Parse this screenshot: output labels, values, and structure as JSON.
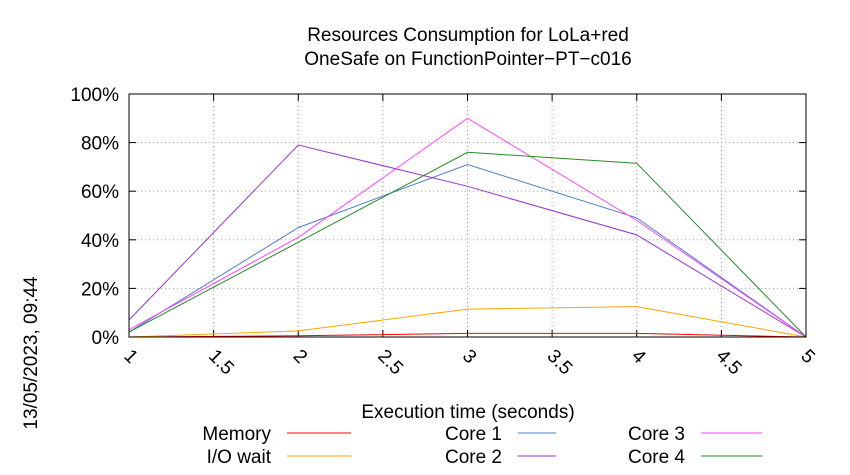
{
  "chart_data": {
    "type": "line",
    "title": "Resources Consumption for LoLa+red",
    "subtitle": "OneSafe on FunctionPointer−PT−c016",
    "xlabel": "Execution time (seconds)",
    "ylabel": "",
    "timestamp": "13/05/2023, 09:44",
    "xlim": [
      1,
      5
    ],
    "ylim": [
      0,
      100
    ],
    "x_ticks": [
      "1",
      "1.5",
      "2",
      "2.5",
      "3",
      "3.5",
      "4",
      "4.5",
      "5"
    ],
    "y_ticks": [
      "0%",
      "20%",
      "40%",
      "60%",
      "80%",
      "100%"
    ],
    "grid": true,
    "legend_position": "bottom",
    "x": [
      1,
      2,
      3,
      4,
      5
    ],
    "series": [
      {
        "name": "Memory",
        "color": "#ff0000",
        "values": [
          0,
          0.5,
          1.5,
          1.5,
          0
        ]
      },
      {
        "name": "I/O wait",
        "color": "#ffa500",
        "values": [
          0,
          2.5,
          11.5,
          12.5,
          0
        ]
      },
      {
        "name": "Core 1",
        "color": "#4a7cc8",
        "values": [
          2,
          45,
          71,
          49,
          0
        ]
      },
      {
        "name": "Core 2",
        "color": "#9932cc",
        "values": [
          7,
          79,
          62,
          42,
          0
        ]
      },
      {
        "name": "Core 3",
        "color": "#ff44ff",
        "values": [
          3,
          41,
          90,
          48,
          0
        ]
      },
      {
        "name": "Core 4",
        "color": "#228b22",
        "values": [
          2,
          39,
          76,
          71.5,
          0
        ]
      }
    ]
  }
}
